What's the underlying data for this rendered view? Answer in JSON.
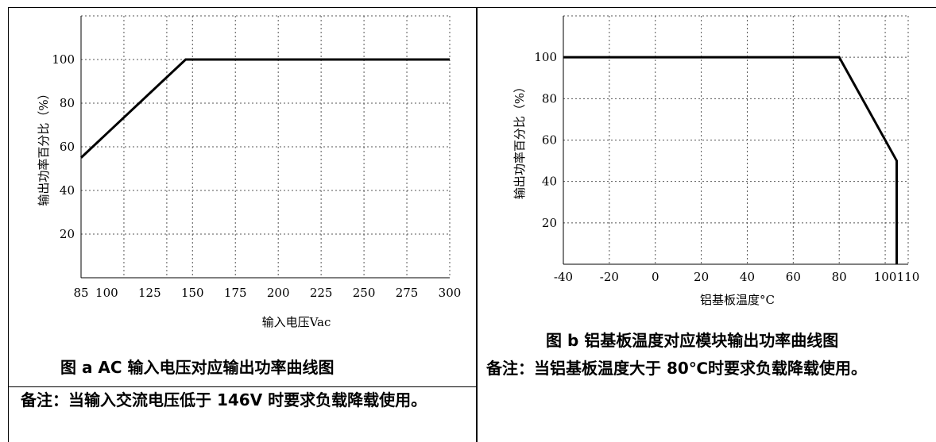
{
  "chart_data": [
    {
      "type": "line",
      "title": "",
      "xlabel": "输入电压Vac",
      "ylabel": "输出功率百分比（%）",
      "xlim": [
        85,
        300
      ],
      "ylim": [
        0,
        120
      ],
      "x_ticks": [
        85,
        100,
        125,
        150,
        175,
        200,
        225,
        250,
        275,
        300
      ],
      "y_ticks": [
        20,
        40,
        60,
        80,
        100
      ],
      "x_grid": [
        85,
        110,
        135,
        150,
        175,
        200,
        225,
        250,
        275,
        300
      ],
      "y_grid": [
        0,
        20,
        40,
        60,
        80,
        100,
        120
      ],
      "grid": true,
      "series": [
        {
          "x": [
            85,
            146,
            300
          ],
          "y": [
            55,
            100,
            100
          ]
        }
      ]
    },
    {
      "type": "line",
      "title": "",
      "xlabel": "铝基板温度°C",
      "ylabel": "输出功率百分比（%）",
      "xlim": [
        -40,
        110
      ],
      "ylim": [
        0,
        120
      ],
      "x_ticks": [
        -40,
        -20,
        0,
        20,
        40,
        60,
        80,
        100,
        110
      ],
      "y_ticks": [
        20,
        40,
        60,
        80,
        100
      ],
      "x_grid": [
        -40,
        -20,
        0,
        20,
        40,
        60,
        80,
        100,
        110
      ],
      "y_grid": [
        0,
        20,
        40,
        60,
        80,
        100,
        120
      ],
      "grid": true,
      "series": [
        {
          "x": [
            -40,
            80,
            105,
            105
          ],
          "y": [
            100,
            100,
            50,
            0
          ]
        }
      ]
    }
  ],
  "captions": {
    "left": "图 a AC 输入电压对应输出功率曲线图",
    "right": "图 b 铝基板温度对应模块输出功率曲线图"
  },
  "notes": {
    "left": "备注：当输入交流电压低于 146V 时要求负载降载使用。",
    "right": "备注：当铝基板温度大于 80℃时要求负载降载使用。"
  }
}
